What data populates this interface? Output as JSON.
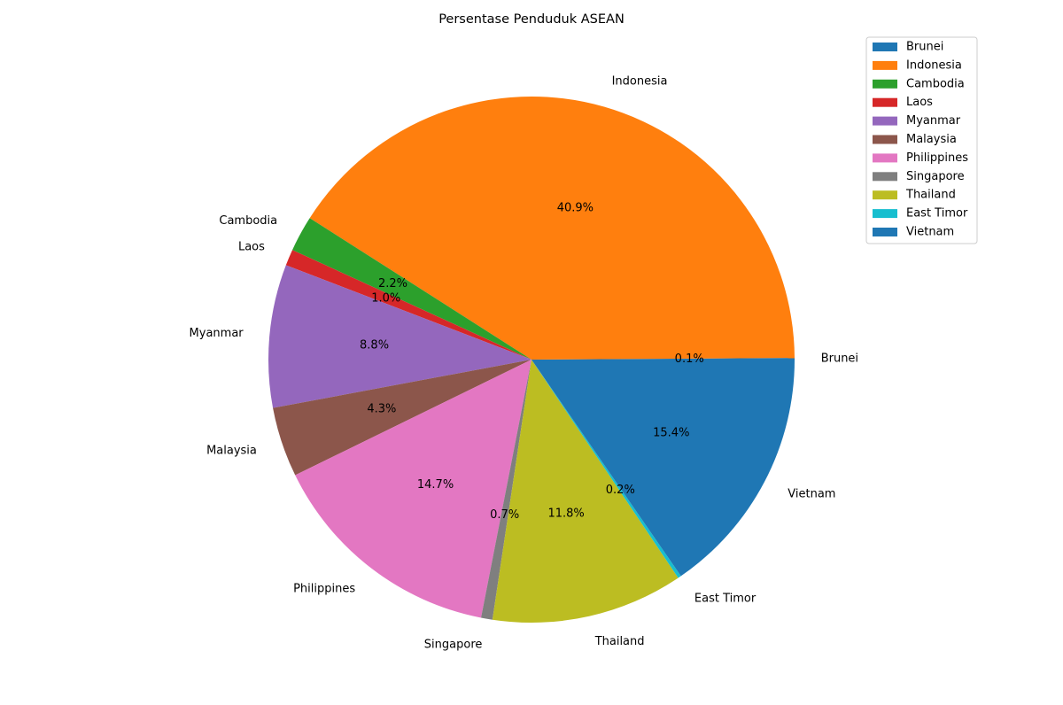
{
  "chart_data": {
    "type": "pie",
    "title": "Persentase Penduduk ASEAN",
    "categories": [
      "Brunei",
      "Indonesia",
      "Cambodia",
      "Laos",
      "Myanmar",
      "Malaysia",
      "Philippines",
      "Singapore",
      "Thailand",
      "East Timor",
      "Vietnam"
    ],
    "values": [
      0.1,
      40.9,
      2.2,
      1.0,
      8.8,
      4.3,
      14.7,
      0.7,
      11.8,
      0.2,
      15.4
    ],
    "percent_labels": [
      "0.1%",
      "40.9%",
      "2.2%",
      "1.0%",
      "8.8%",
      "4.3%",
      "14.7%",
      "0.7%",
      "11.8%",
      "0.2%",
      "15.4%"
    ],
    "colors": [
      "#1f77b4",
      "#ff7f0e",
      "#2ca02c",
      "#d62728",
      "#9467bd",
      "#8c564b",
      "#e377c2",
      "#7f7f7f",
      "#bcbd22",
      "#17becf",
      "#1f77b4"
    ],
    "start_angle_deg": 0,
    "direction": "counterclockwise",
    "legend": {
      "placement": "top-right",
      "entries": [
        "Brunei",
        "Indonesia",
        "Cambodia",
        "Laos",
        "Myanmar",
        "Malaysia",
        "Philippines",
        "Singapore",
        "Thailand",
        "East Timor",
        "Vietnam"
      ]
    }
  }
}
